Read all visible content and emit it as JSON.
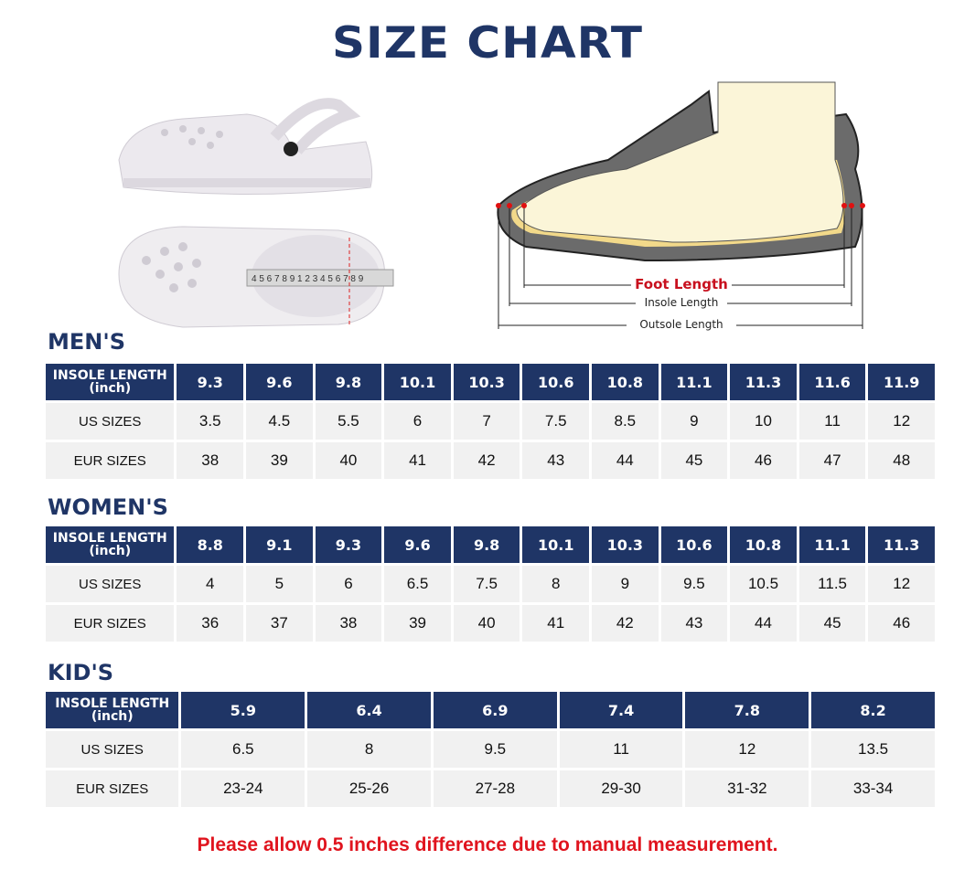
{
  "title": "SIZE CHART",
  "diagram": {
    "foot_length": "Foot Length",
    "insole_length": "Insole Length",
    "outsole_length": "Outsole Length"
  },
  "row_labels": {
    "insole": "INSOLE LENGTH",
    "unit": "(inch)",
    "us": "US SIZES",
    "eur": "EUR SIZES"
  },
  "sections": [
    {
      "heading": "MEN'S",
      "insole": [
        "9.3",
        "9.6",
        "9.8",
        "10.1",
        "10.3",
        "10.6",
        "10.8",
        "11.1",
        "11.3",
        "11.6",
        "11.9"
      ],
      "us": [
        "3.5",
        "4.5",
        "5.5",
        "6",
        "7",
        "7.5",
        "8.5",
        "9",
        "10",
        "11",
        "12"
      ],
      "eur": [
        "38",
        "39",
        "40",
        "41",
        "42",
        "43",
        "44",
        "45",
        "46",
        "47",
        "48"
      ]
    },
    {
      "heading": "WOMEN'S",
      "insole": [
        "8.8",
        "9.1",
        "9.3",
        "9.6",
        "9.8",
        "10.1",
        "10.3",
        "10.6",
        "10.8",
        "11.1",
        "11.3"
      ],
      "us": [
        "4",
        "5",
        "6",
        "6.5",
        "7.5",
        "8",
        "9",
        "9.5",
        "10.5",
        "11.5",
        "12"
      ],
      "eur": [
        "36",
        "37",
        "38",
        "39",
        "40",
        "41",
        "42",
        "43",
        "44",
        "45",
        "46"
      ]
    },
    {
      "heading": "KID'S",
      "insole": [
        "5.9",
        "6.4",
        "6.9",
        "7.4",
        "7.8",
        "8.2"
      ],
      "us": [
        "6.5",
        "8",
        "9.5",
        "11",
        "12",
        "13.5"
      ],
      "eur": [
        "23-24",
        "25-26",
        "27-28",
        "29-30",
        "31-32",
        "33-34"
      ]
    }
  ],
  "note": "Please allow 0.5 inches difference due to manual measurement.",
  "colors": {
    "header": "#1f3566",
    "cell": "#f1f1f1",
    "note": "#e0141e"
  }
}
